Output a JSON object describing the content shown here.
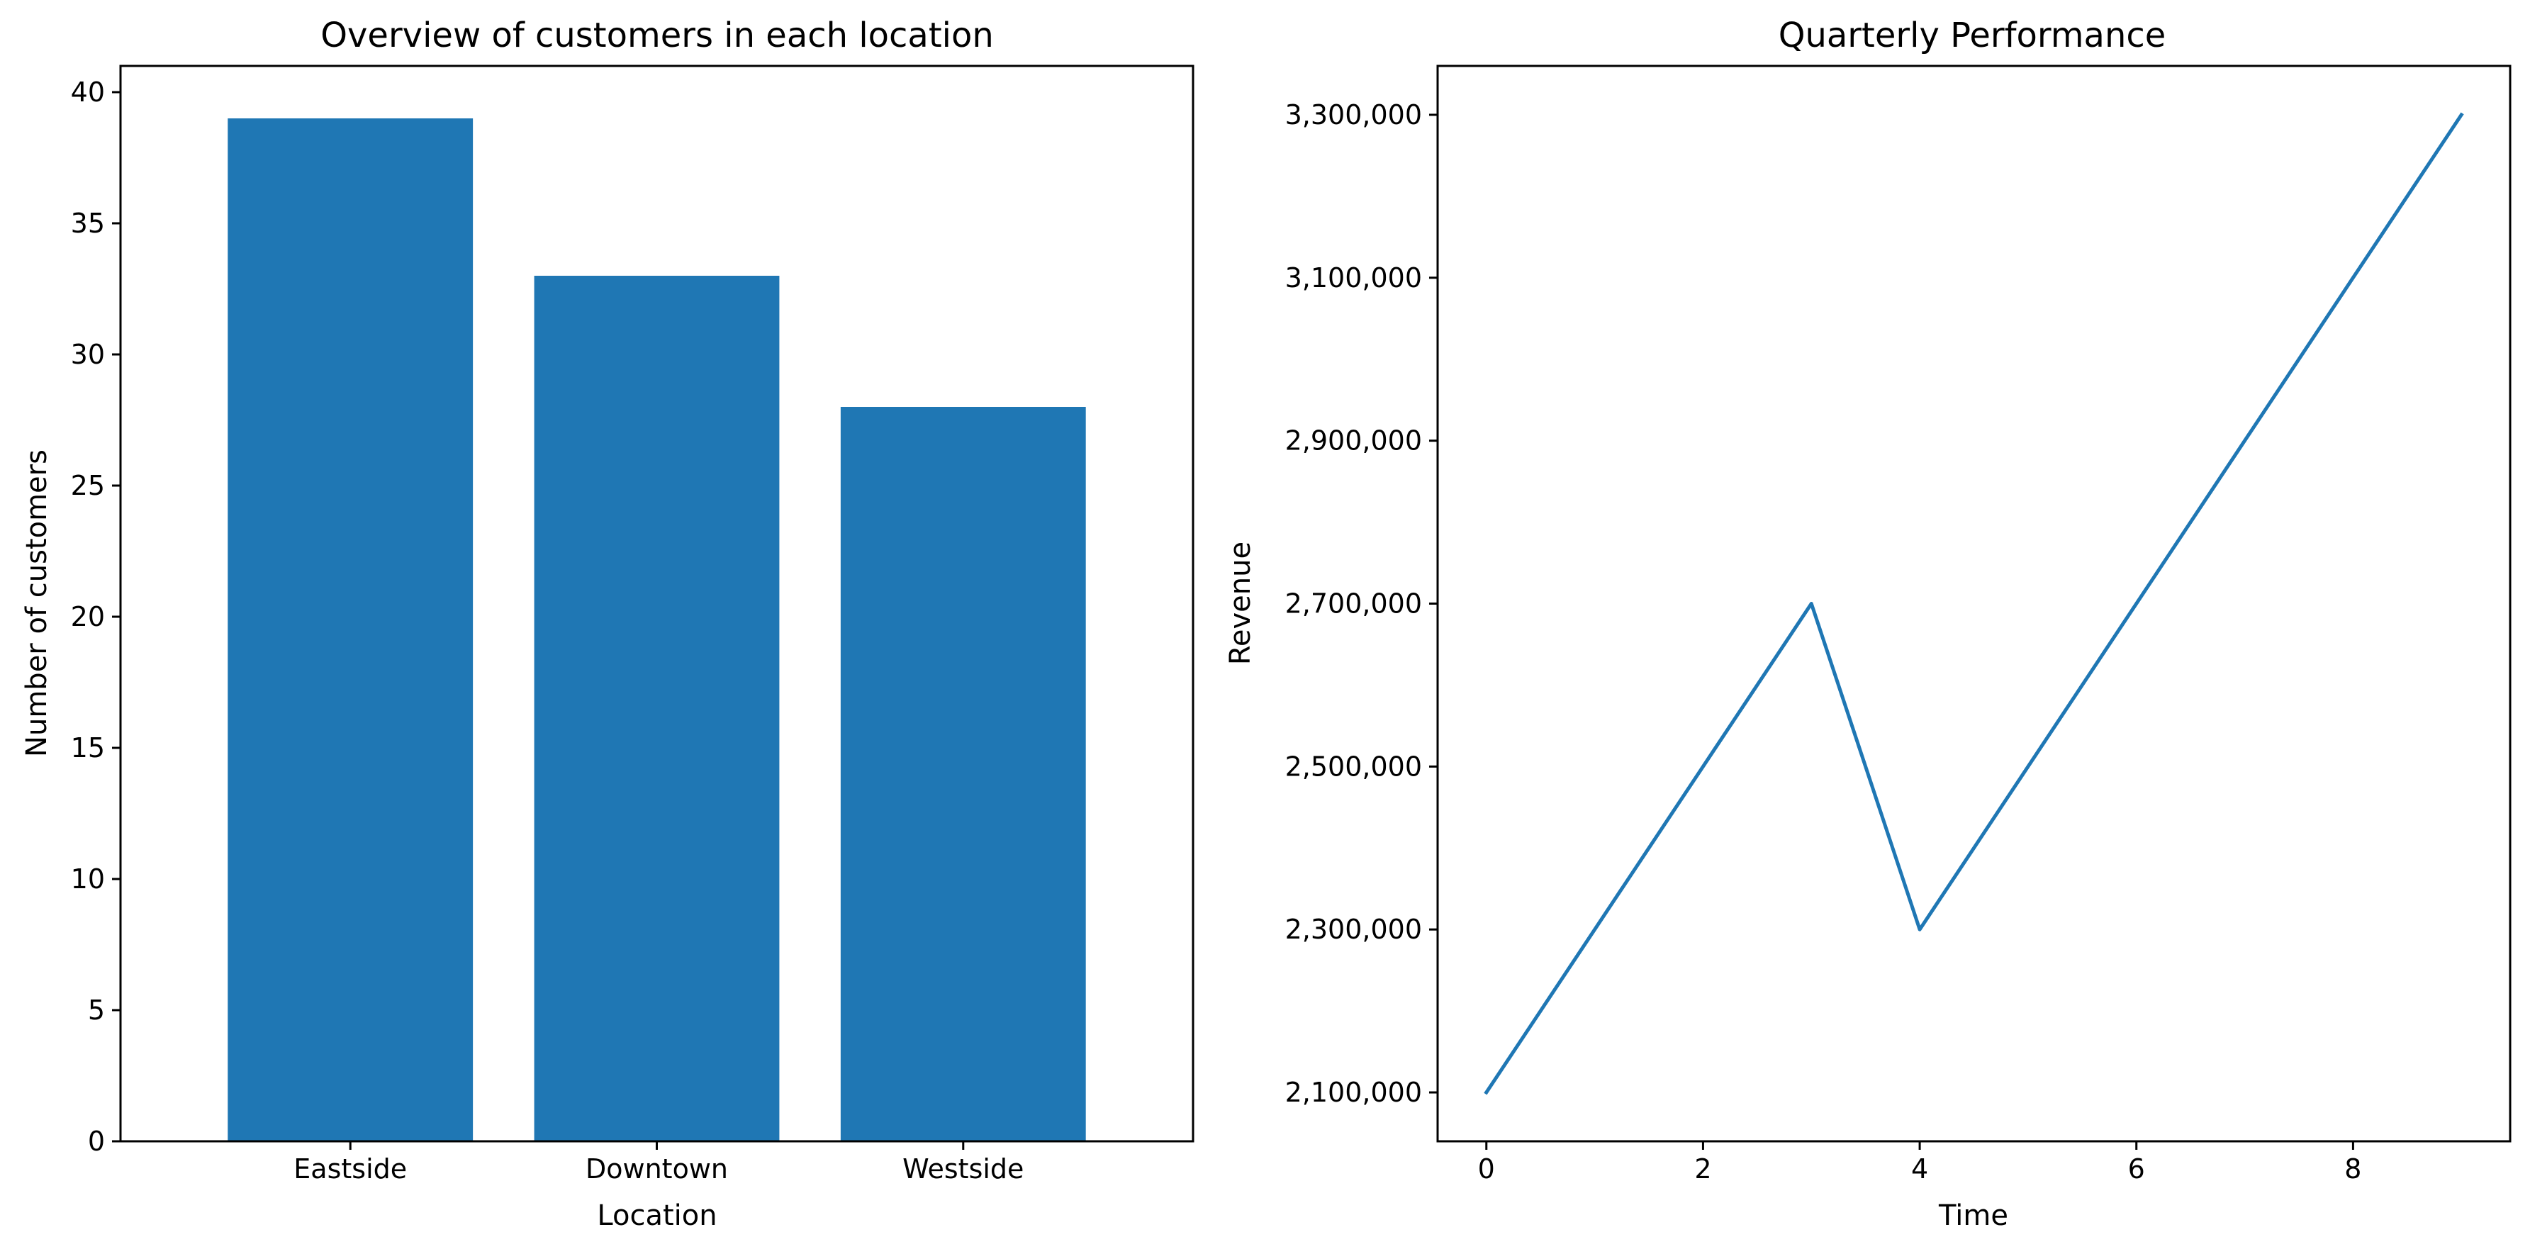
{
  "chart_data": [
    {
      "type": "bar",
      "title": "Overview of customers in each location",
      "xlabel": "Location",
      "ylabel": "Number of customers",
      "categories": [
        "Eastside",
        "Downtown",
        "Westside"
      ],
      "values": [
        39,
        33,
        28
      ],
      "ylim": [
        0,
        41
      ],
      "yticks": [
        0,
        5,
        10,
        15,
        20,
        25,
        30,
        35,
        40
      ],
      "ytick_labels": [
        "0",
        "5",
        "10",
        "15",
        "20",
        "25",
        "30",
        "35",
        "40"
      ],
      "grid": false,
      "color": "#1f77b4"
    },
    {
      "type": "line",
      "title": "Quarterly Performance",
      "xlabel": "Time",
      "ylabel": "Revenue",
      "x": [
        0,
        1,
        2,
        3,
        4,
        5,
        6,
        7,
        8,
        9
      ],
      "y": [
        2100000,
        2300000,
        2500000,
        2700000,
        2300000,
        2500000,
        2700000,
        2900000,
        3100000,
        3300000
      ],
      "xlim": [
        -0.45,
        9.45
      ],
      "ylim": [
        2040000,
        3360000
      ],
      "xticks": [
        0,
        2,
        4,
        6,
        8
      ],
      "xtick_labels": [
        "0",
        "2",
        "4",
        "6",
        "8"
      ],
      "yticks": [
        2100000,
        2300000,
        2500000,
        2700000,
        2900000,
        3100000,
        3300000
      ],
      "ytick_labels": [
        "2,100,000",
        "2,300,000",
        "2,500,000",
        "2,700,000",
        "2,900,000",
        "3,100,000",
        "3,300,000"
      ],
      "grid": false,
      "color": "#1f77b4"
    }
  ]
}
